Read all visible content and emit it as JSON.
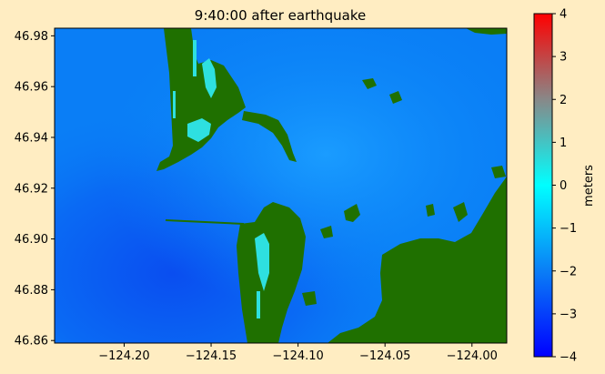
{
  "colors": {
    "page_background": "#ffedc2",
    "land": "#1f7000",
    "water_deep": "#0a4ef0",
    "water_mid": "#0a7ef6",
    "water_shallow": "#1a9cff",
    "inundation": "#2ee0e0"
  },
  "chart_data": {
    "type": "heatmap",
    "title": "9:40:00 after earthquake",
    "xlabel": "",
    "ylabel": "",
    "xlim": [
      -124.24,
      -123.98
    ],
    "ylim": [
      46.859,
      46.983
    ],
    "x_ticks": [
      -124.2,
      -124.15,
      -124.1,
      -124.05,
      -124.0
    ],
    "x_tick_labels": [
      "−124.20",
      "−124.15",
      "−124.10",
      "−124.05",
      "−124.00"
    ],
    "y_ticks": [
      46.86,
      46.88,
      46.9,
      46.92,
      46.94,
      46.96,
      46.98
    ],
    "y_tick_labels": [
      "46.86",
      "46.88",
      "46.90",
      "46.92",
      "46.94",
      "46.96",
      "46.98"
    ],
    "grid": false,
    "colorbar": {
      "label": "meters",
      "range": [
        -4,
        4
      ],
      "ticks": [
        -4,
        -3,
        -2,
        -1,
        0,
        1,
        2,
        3,
        4
      ],
      "tick_labels": [
        "−4",
        "−3",
        "−2",
        "−1",
        "0",
        "1",
        "2",
        "3",
        "4"
      ],
      "colormap_stops": [
        {
          "value": -4,
          "color": "#0000ff"
        },
        {
          "value": -2,
          "color": "#0a7ef6"
        },
        {
          "value": 0,
          "color": "#00ffff"
        },
        {
          "value": 2,
          "color": "#888888"
        },
        {
          "value": 4,
          "color": "#ff0000"
        }
      ]
    }
  }
}
